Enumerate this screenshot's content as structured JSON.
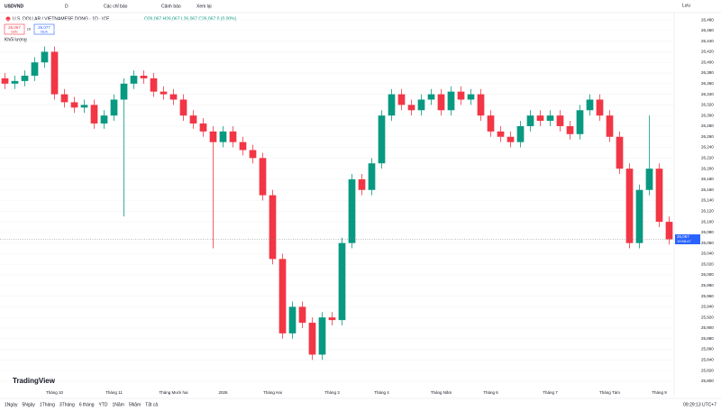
{
  "toolbar": {
    "symbol": "USDVND",
    "interval": "D",
    "indicators": "Các chỉ báo",
    "alerts": "Cảnh báo",
    "replay": "Xem lại",
    "save": "Lưu"
  },
  "legend": {
    "title": "U.S. DOLLAR / VIETNAMESE DONG · 1D · ICE",
    "ohlc": "O26,067 H26,067 L26,067 C26,067 0 (0.00%)",
    "volume": "Khối lượng"
  },
  "trade": {
    "sell_price": "26,067",
    "sell": "BÁN",
    "spread": "10",
    "buy_price": "26,077",
    "buy": "MUA"
  },
  "logo": "TradingView",
  "ranges": [
    "1Ngày",
    "5Ngày",
    "1Tháng",
    "3Tháng",
    "6 tháng",
    "YTD",
    "1Năm",
    "5Năm",
    "Tất cả"
  ],
  "clock": "09:29:13 UTC+7",
  "countdown": "19:58:47",
  "chart_data": {
    "type": "candlestick",
    "up_color": "#089981",
    "down_color": "#f23645",
    "grid": true,
    "last_price": {
      "value": 26067,
      "label": "26,067"
    },
    "categories": [
      null,
      null,
      null,
      null,
      null,
      "Tháng 10",
      null,
      null,
      null,
      null,
      null,
      "Tháng 11",
      null,
      null,
      null,
      null,
      null,
      "Tháng Mười hai",
      null,
      null,
      null,
      null,
      "2026",
      null,
      null,
      null,
      null,
      "Tháng Hai",
      null,
      null,
      null,
      null,
      null,
      "Tháng 3",
      null,
      null,
      null,
      null,
      "Tháng 4",
      null,
      null,
      null,
      null,
      null,
      "Tháng Năm",
      null,
      null,
      null,
      null,
      "Tháng 6",
      null,
      null,
      null,
      null,
      null,
      "Tháng 7",
      null,
      null,
      null,
      null,
      null,
      "Tháng Tám",
      null,
      null,
      null,
      null,
      "Tháng 9",
      null
    ],
    "open": [
      26370,
      26360,
      26365,
      26375,
      26400,
      26420,
      26340,
      26325,
      26315,
      26320,
      26285,
      26300,
      26330,
      26360,
      26375,
      26370,
      26345,
      26340,
      26330,
      26300,
      26285,
      26270,
      26250,
      26270,
      26250,
      26235,
      26220,
      26150,
      26030,
      25890,
      25940,
      25910,
      25850,
      25920,
      25915,
      26060,
      26180,
      26160,
      26210,
      26300,
      26340,
      26320,
      26310,
      26330,
      26340,
      26310,
      26345,
      26330,
      26340,
      26300,
      26270,
      26260,
      26250,
      26280,
      26300,
      26290,
      26300,
      26280,
      26265,
      26310,
      26330,
      26300,
      26260,
      26200,
      26060,
      26160,
      26200,
      26100
    ],
    "high": [
      26380,
      26375,
      26385,
      26410,
      26430,
      26430,
      26350,
      26335,
      26330,
      26330,
      26310,
      26340,
      26370,
      26385,
      26385,
      26380,
      26355,
      26350,
      26340,
      26310,
      26295,
      26280,
      26280,
      26280,
      26260,
      26245,
      26230,
      26160,
      26040,
      25950,
      25950,
      25920,
      25930,
      25930,
      26070,
      26190,
      26190,
      26220,
      26310,
      26350,
      26350,
      26330,
      26340,
      26350,
      26350,
      26355,
      26355,
      26350,
      26350,
      26310,
      26280,
      26270,
      26290,
      26310,
      26310,
      26310,
      26310,
      26290,
      26320,
      26340,
      26340,
      26310,
      26270,
      26210,
      26170,
      26300,
      26210,
      26110
    ],
    "low": [
      26350,
      26350,
      26355,
      26365,
      26390,
      26330,
      26315,
      26305,
      26305,
      26275,
      26275,
      26290,
      26110,
      26350,
      26360,
      26335,
      26330,
      26320,
      26290,
      26275,
      26260,
      26050,
      26240,
      26240,
      26225,
      26210,
      26140,
      26020,
      25880,
      25880,
      25900,
      25840,
      25840,
      25905,
      25905,
      26050,
      26150,
      26150,
      26200,
      26290,
      26310,
      26300,
      26300,
      26320,
      26300,
      26300,
      26320,
      26320,
      26290,
      26260,
      26250,
      26240,
      26240,
      26270,
      26280,
      26280,
      26270,
      26255,
      26255,
      26300,
      26290,
      26250,
      26190,
      26050,
      26050,
      26150,
      26090,
      26057
    ],
    "close": [
      26360,
      26365,
      26375,
      26400,
      26420,
      26340,
      26325,
      26315,
      26320,
      26285,
      26300,
      26330,
      26360,
      26375,
      26370,
      26345,
      26340,
      26330,
      26300,
      26285,
      26270,
      26250,
      26270,
      26250,
      26235,
      26220,
      26150,
      26030,
      25890,
      25940,
      25910,
      25850,
      25920,
      25915,
      26060,
      26180,
      26160,
      26210,
      26300,
      26340,
      26320,
      26310,
      26330,
      26340,
      26310,
      26345,
      26330,
      26340,
      26300,
      26270,
      26260,
      26250,
      26280,
      26300,
      26290,
      26300,
      26280,
      26265,
      26310,
      26330,
      26300,
      26260,
      26200,
      26060,
      26160,
      26200,
      26100,
      26067
    ],
    "ylim": [
      25788,
      26492
    ],
    "yticks": [
      {
        "value": 25800,
        "label": "25,800"
      },
      {
        "value": 25820,
        "label": "25,820"
      },
      {
        "value": 25840,
        "label": "25,840"
      },
      {
        "value": 25860,
        "label": "25,860"
      },
      {
        "value": 25880,
        "label": "25,880"
      },
      {
        "value": 25900,
        "label": "25,900"
      },
      {
        "value": 25920,
        "label": "25,920"
      },
      {
        "value": 25940,
        "label": "25,940"
      },
      {
        "value": 25960,
        "label": "25,960"
      },
      {
        "value": 25980,
        "label": "25,980"
      },
      {
        "value": 26000,
        "label": "26,000"
      },
      {
        "value": 26020,
        "label": "26,020"
      },
      {
        "value": 26040,
        "label": "26,040"
      },
      {
        "value": 26060,
        "label": "26,060"
      },
      {
        "value": 26080,
        "label": "26,080"
      },
      {
        "value": 26100,
        "label": "26,100"
      },
      {
        "value": 26120,
        "label": "26,120"
      },
      {
        "value": 26140,
        "label": "26,140"
      },
      {
        "value": 26160,
        "label": "26,160"
      },
      {
        "value": 26180,
        "label": "26,180"
      },
      {
        "value": 26200,
        "label": "26,200"
      },
      {
        "value": 26220,
        "label": "26,220"
      },
      {
        "value": 26240,
        "label": "26,240"
      },
      {
        "value": 26260,
        "label": "26,260"
      },
      {
        "value": 26280,
        "label": "26,280"
      },
      {
        "value": 26300,
        "label": "26,300"
      },
      {
        "value": 26320,
        "label": "26,320"
      },
      {
        "value": 26340,
        "label": "26,340"
      },
      {
        "value": 26360,
        "label": "26,360"
      },
      {
        "value": 26380,
        "label": "26,380"
      },
      {
        "value": 26400,
        "label": "26,400"
      },
      {
        "value": 26420,
        "label": "26,420"
      },
      {
        "value": 26440,
        "label": "26,440"
      },
      {
        "value": 26460,
        "label": "26,460"
      },
      {
        "value": 26480,
        "label": "26,480"
      }
    ]
  }
}
